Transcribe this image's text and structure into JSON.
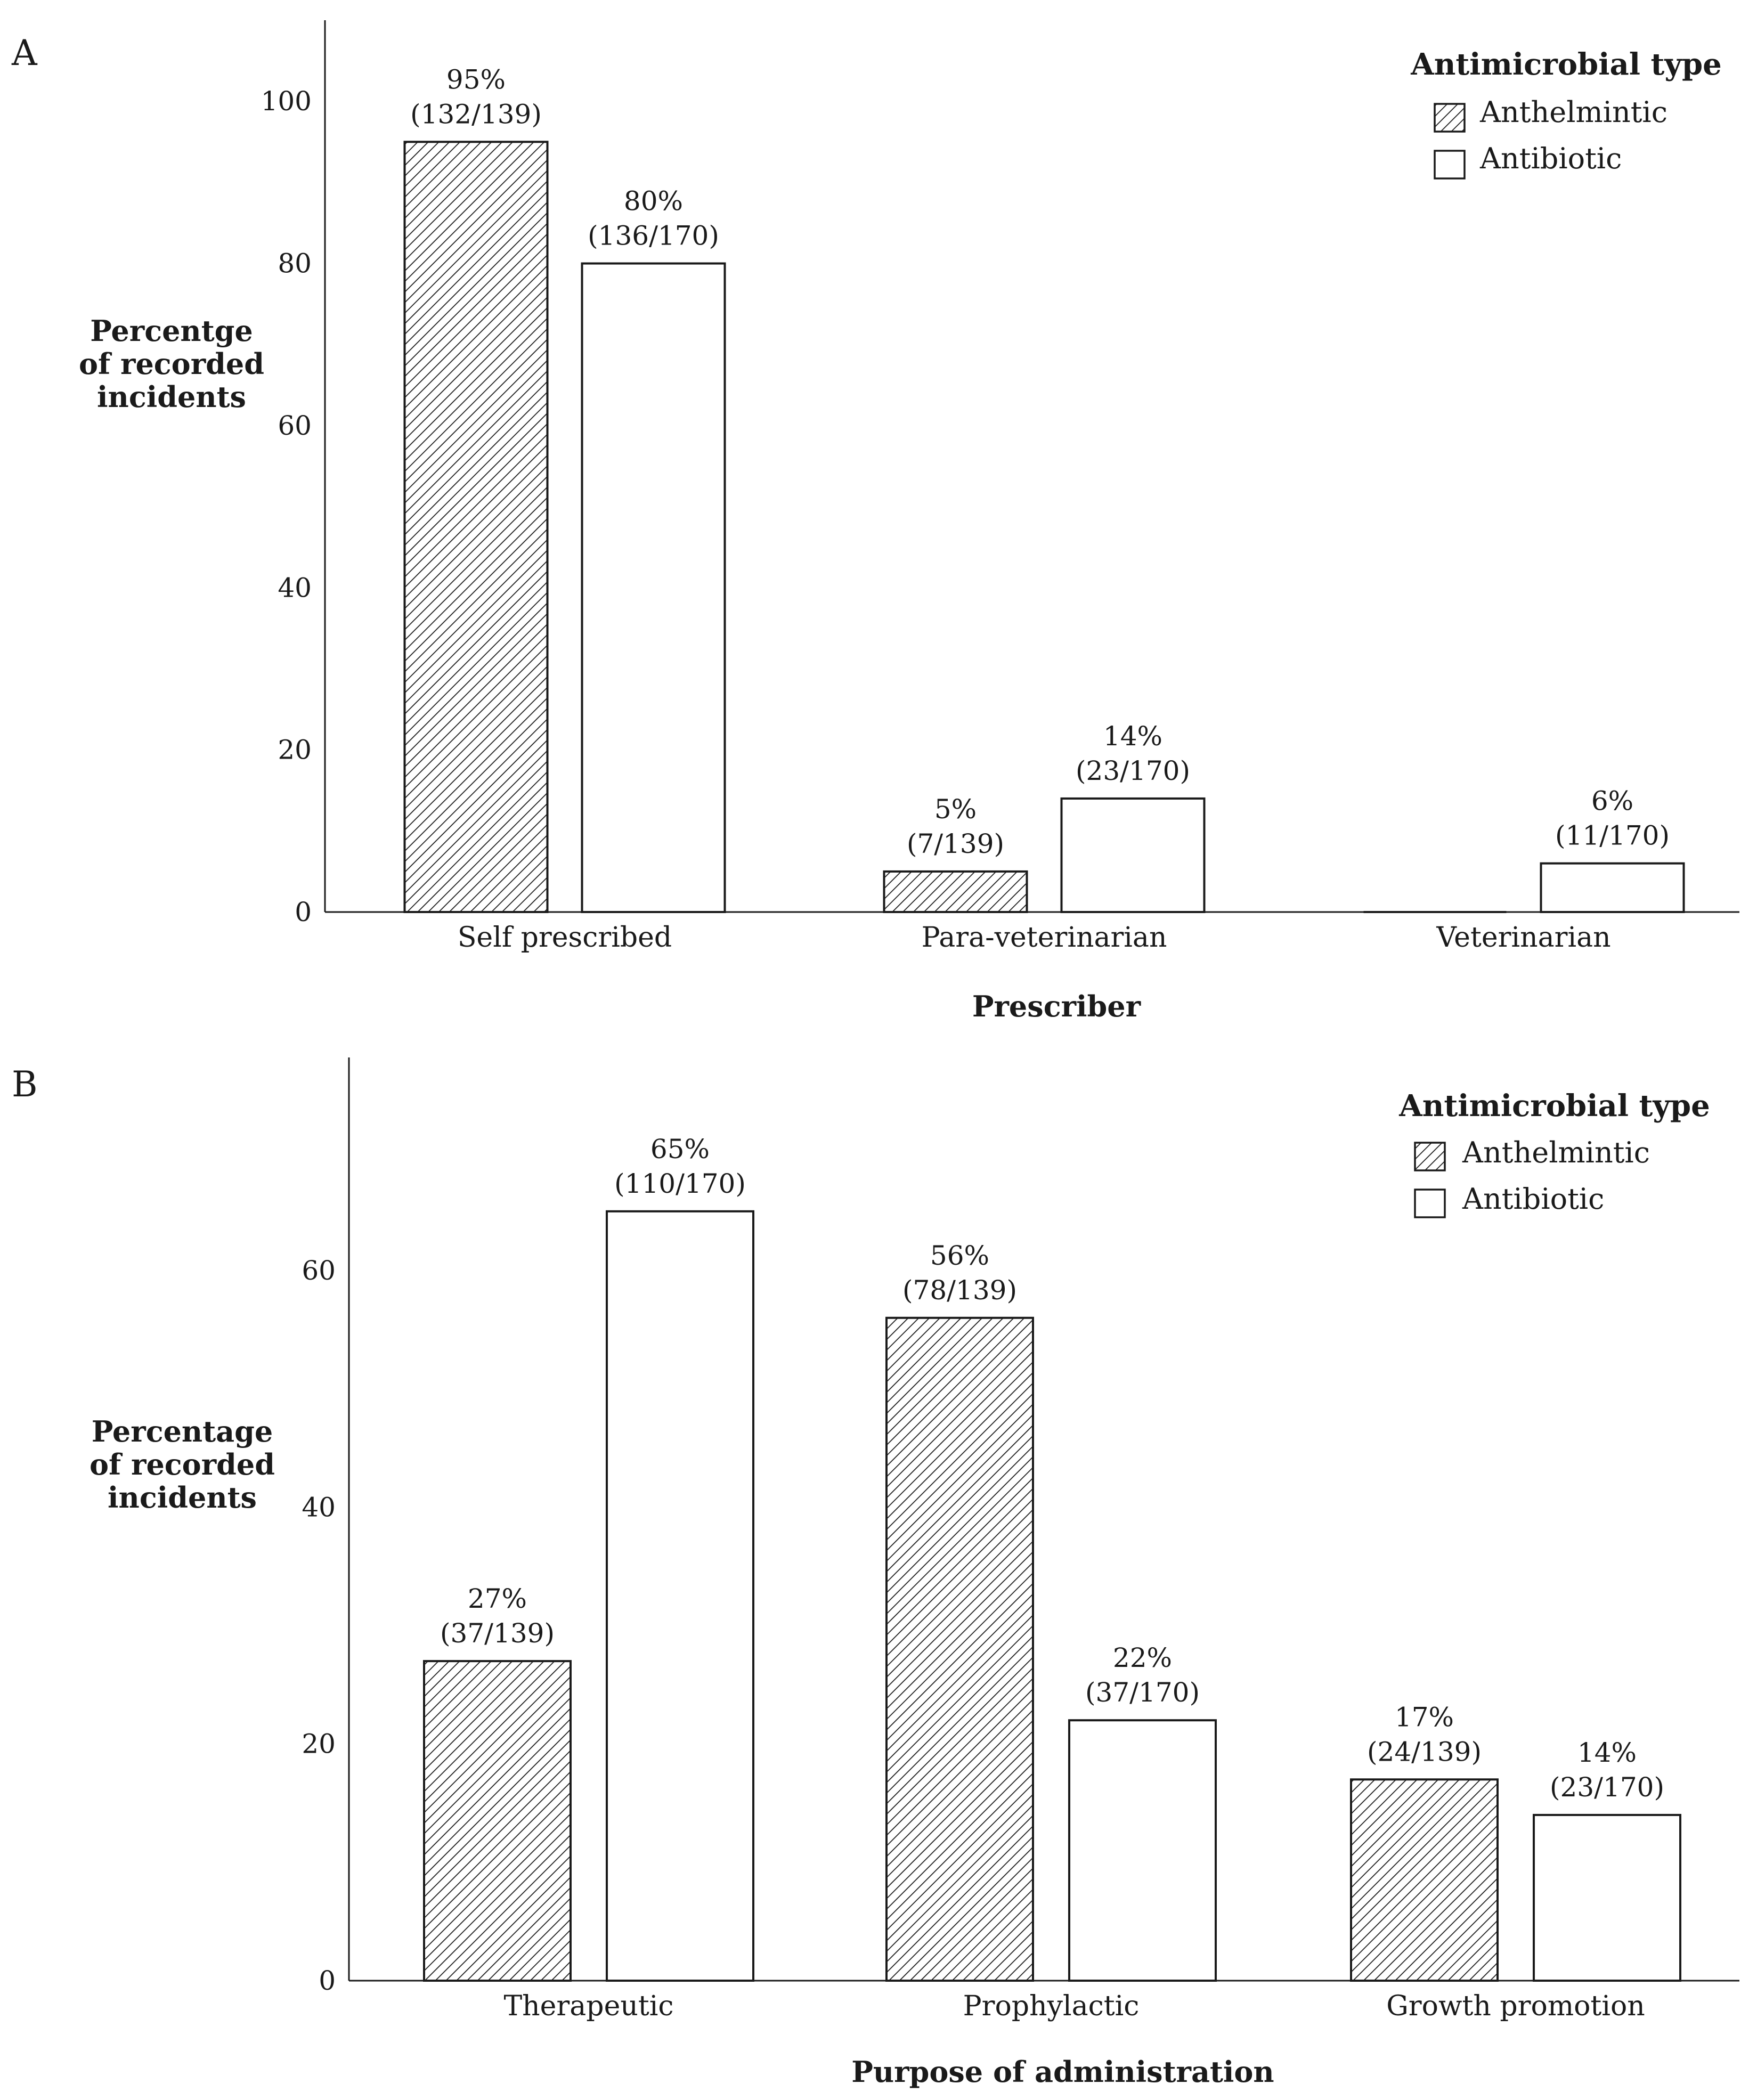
{
  "colors": {
    "axis": "#1a1a1a",
    "bar_stroke": "#1a1a1a",
    "antibiotic_fill": "#ffffff",
    "hatch": "#1a1a1a"
  },
  "chart_data": [
    {
      "panel": "A",
      "type": "bar",
      "xlabel": "Prescriber",
      "ylabel_lines": [
        "Percentge",
        "of recorded",
        "incidents"
      ],
      "ylim": [
        0,
        110
      ],
      "yticks": [
        0,
        20,
        40,
        60,
        80,
        100
      ],
      "grid": false,
      "legend_title": "Antimicrobial type",
      "legend_position": "top-right",
      "categories": [
        "Self prescribed",
        "Para-veterinarian",
        "Veterinarian"
      ],
      "series": [
        {
          "name": "Anthelmintic",
          "pattern": "hatched",
          "values": [
            95,
            5,
            0
          ],
          "labels": [
            [
              "95%",
              "(132/139)"
            ],
            [
              "5%",
              "(7/139)"
            ],
            null
          ]
        },
        {
          "name": "Antibiotic",
          "pattern": "white",
          "values": [
            80,
            14,
            6
          ],
          "labels": [
            [
              "80%",
              "(136/170)"
            ],
            [
              "14%",
              "(23/170)"
            ],
            [
              "6%",
              "(11/170)"
            ]
          ]
        }
      ]
    },
    {
      "panel": "B",
      "type": "bar",
      "xlabel": "Purpose of administration",
      "ylabel_lines": [
        "Percentage",
        "of recorded",
        "incidents"
      ],
      "ylim": [
        0,
        78
      ],
      "yticks": [
        0,
        20,
        40,
        60
      ],
      "grid": false,
      "legend_title": "Antimicrobial type",
      "legend_position": "top-right",
      "categories": [
        "Therapeutic",
        "Prophylactic",
        "Growth promotion"
      ],
      "series": [
        {
          "name": "Anthelmintic",
          "pattern": "hatched",
          "values": [
            27,
            56,
            17
          ],
          "labels": [
            [
              "27%",
              "(37/139)"
            ],
            [
              "56%",
              "(78/139)"
            ],
            [
              "17%",
              "(24/139)"
            ]
          ]
        },
        {
          "name": "Antibiotic",
          "pattern": "white",
          "values": [
            65,
            22,
            14
          ],
          "labels": [
            [
              "65%",
              "(110/170)"
            ],
            [
              "22%",
              "(37/170)"
            ],
            [
              "14%",
              "(23/170)"
            ]
          ]
        }
      ]
    }
  ]
}
